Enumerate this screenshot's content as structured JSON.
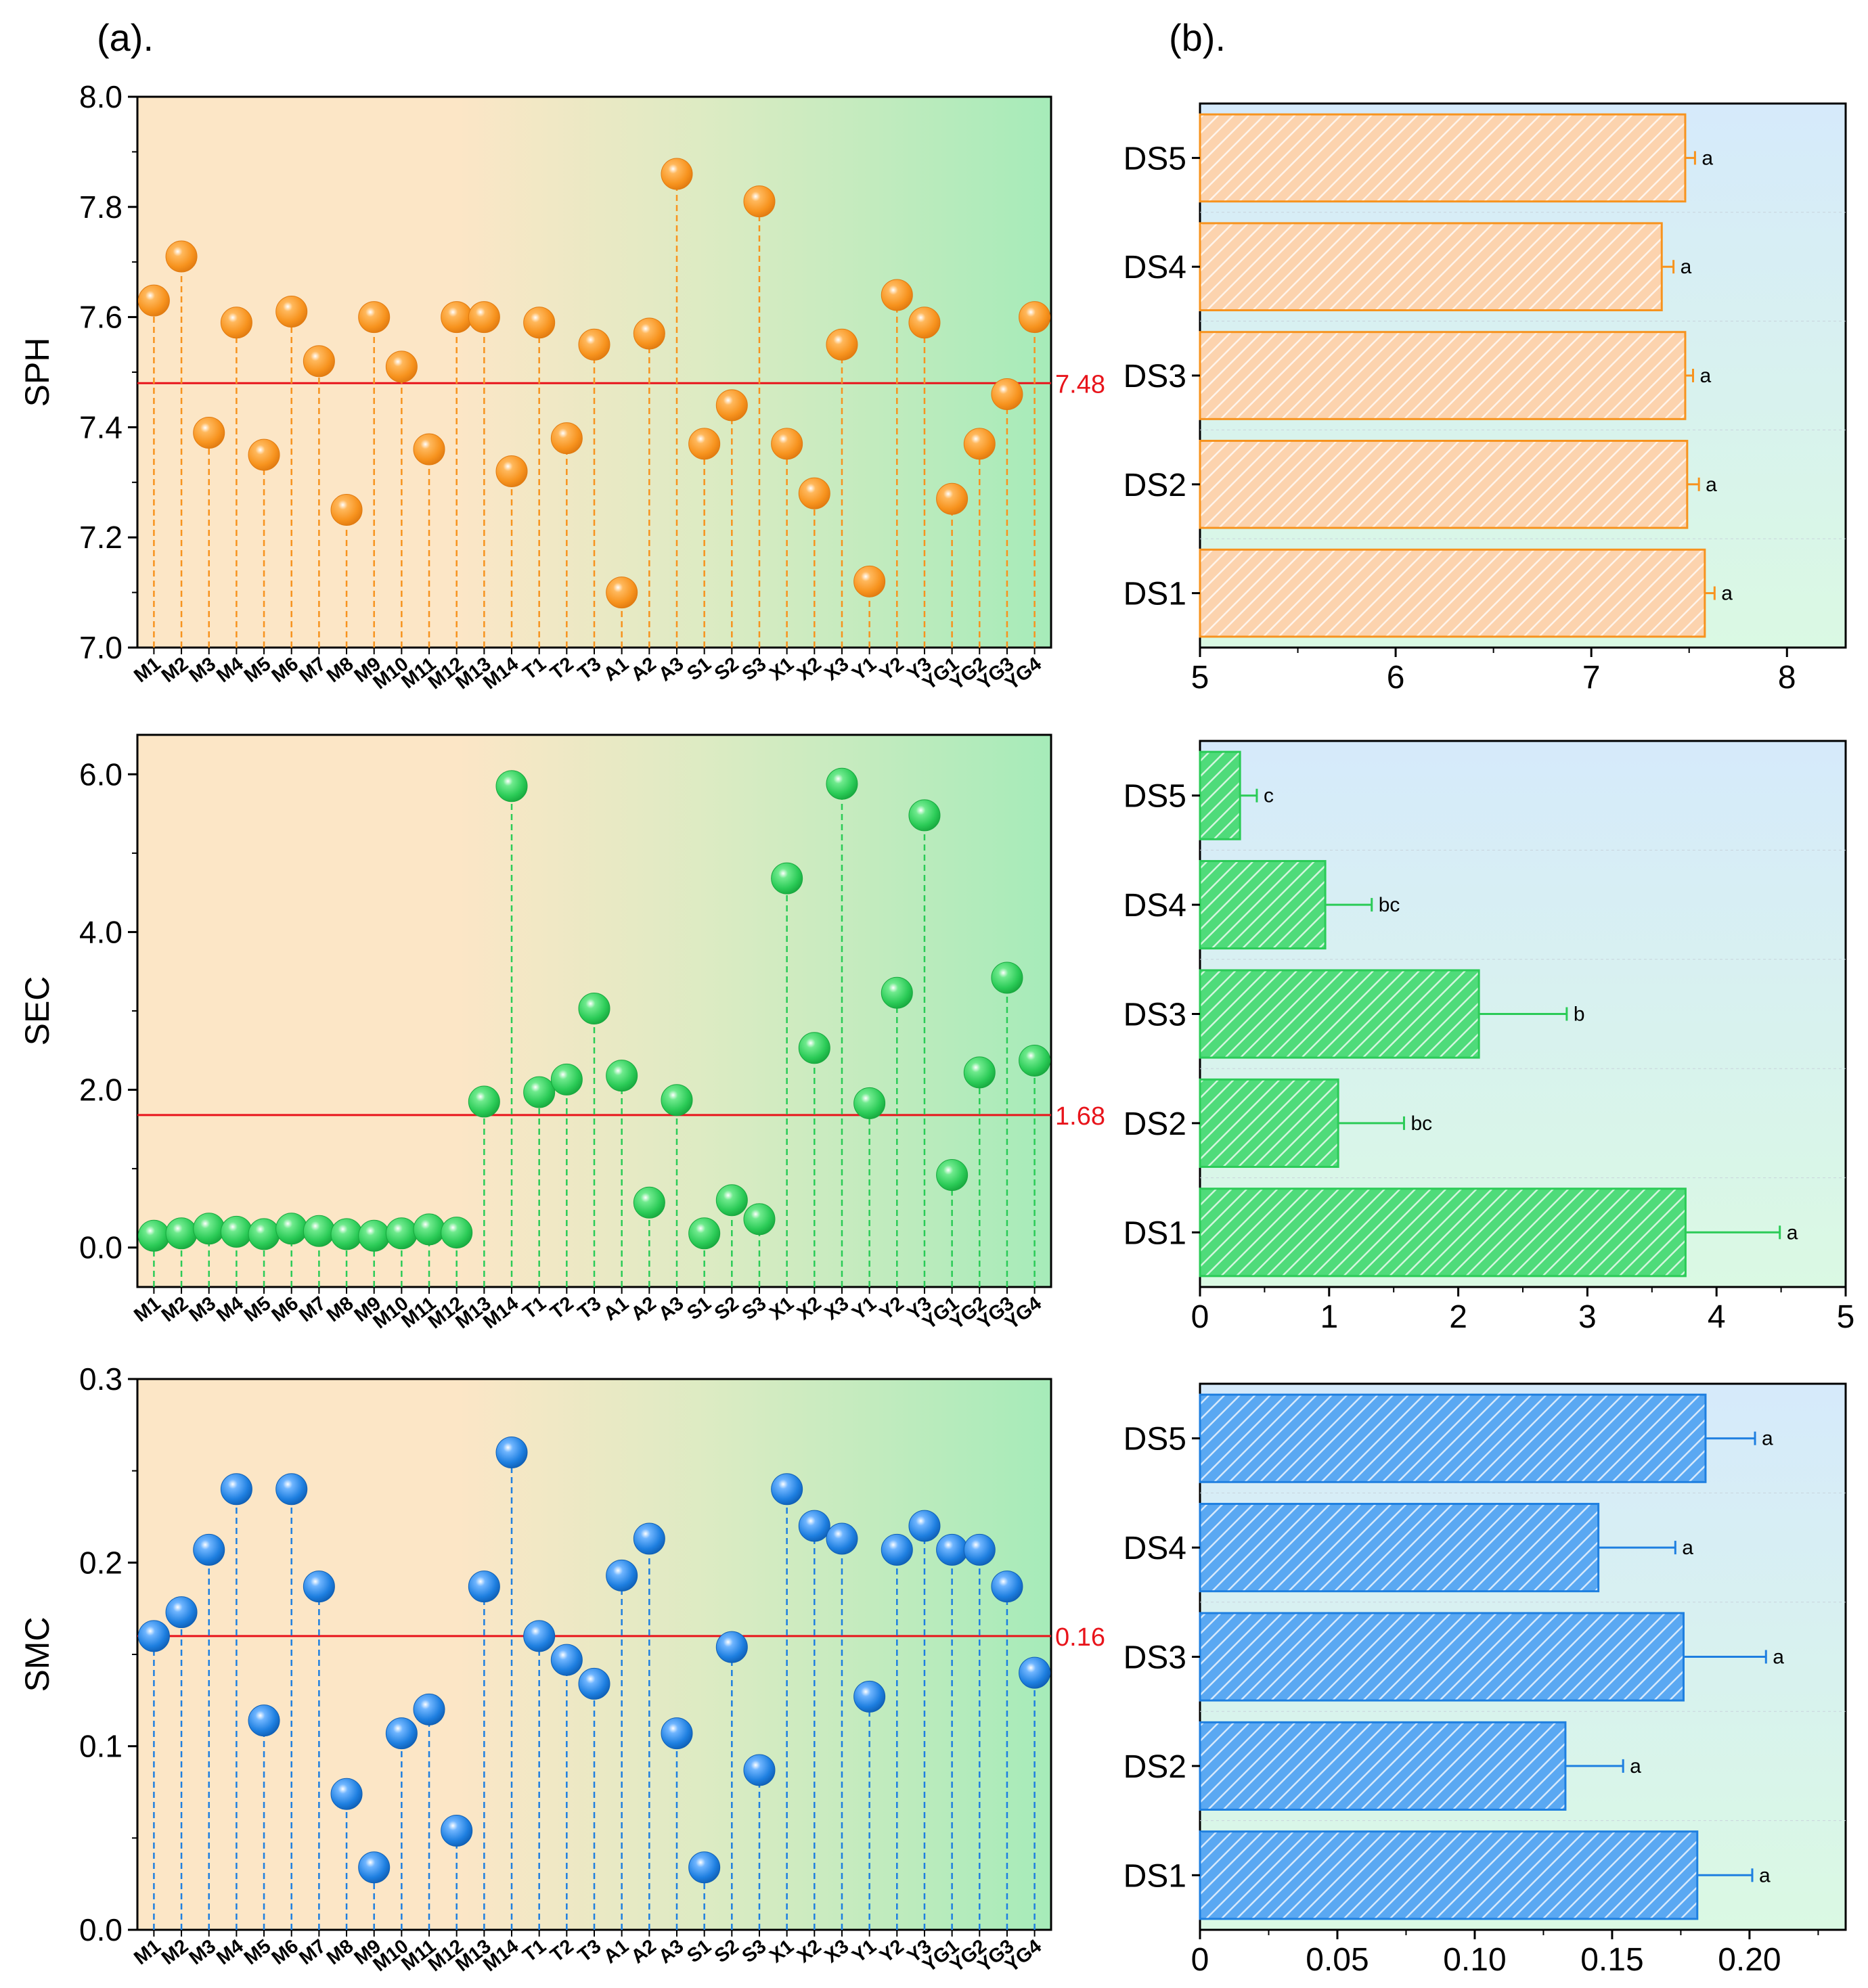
{
  "panel_labels": [
    "(a).",
    "(b)."
  ],
  "colors": {
    "orange": "#F7931E",
    "orange_dark": "#E07A10",
    "orange_light": "#FFB85C",
    "green": "#2BCB57",
    "green_dark": "#17A83E",
    "green_light": "#6FEA8D",
    "blue": "#1E7FE0",
    "blue_dark": "#0F5FB5",
    "blue_light": "#6FB5FF",
    "ref_line": "#E8141B",
    "bg_left": "#FCE6C6",
    "bg_mid": "#DDEBC3",
    "bg_right": "#A6EBB9",
    "bar_bg_top": "#D6EAFB",
    "bar_bg_bottom": "#DAF9E3"
  },
  "chart_data": [
    {
      "id": "a-sph",
      "type": "scatter",
      "style": "lollipop",
      "ylabel": "SPH",
      "ylim": [
        7.0,
        8.0
      ],
      "yticks": [
        "7.0",
        "7.2",
        "7.4",
        "7.6",
        "7.8",
        "8.0"
      ],
      "categories": [
        "M1",
        "M2",
        "M3",
        "M4",
        "M5",
        "M6",
        "M7",
        "M8",
        "M9",
        "M10",
        "M11",
        "M12",
        "M13",
        "M14",
        "T1",
        "T2",
        "T3",
        "A1",
        "A2",
        "A3",
        "S1",
        "S2",
        "S3",
        "X1",
        "X2",
        "X3",
        "Y1",
        "Y2",
        "Y3",
        "YG1",
        "YG2",
        "YG3",
        "YG4"
      ],
      "values": [
        7.63,
        7.71,
        7.39,
        7.59,
        7.35,
        7.61,
        7.52,
        7.25,
        7.6,
        7.51,
        7.36,
        7.6,
        7.6,
        7.32,
        7.59,
        7.38,
        7.55,
        7.1,
        7.57,
        7.86,
        7.37,
        7.44,
        7.81,
        7.37,
        7.28,
        7.55,
        7.12,
        7.64,
        7.59,
        7.27,
        7.37,
        7.46,
        7.6
      ],
      "reference": 7.48,
      "reference_label": "7.48"
    },
    {
      "id": "a-sec",
      "type": "scatter",
      "style": "lollipop",
      "ylabel": "SEC",
      "ylim": [
        -0.5,
        6.5
      ],
      "yticks": [
        "0.0",
        "2.0",
        "4.0",
        "6.0"
      ],
      "categories": [
        "M1",
        "M2",
        "M3",
        "M4",
        "M5",
        "M6",
        "M7",
        "M8",
        "M9",
        "M10",
        "M11",
        "M12",
        "M13",
        "M14",
        "T1",
        "T2",
        "T3",
        "A1",
        "A2",
        "A3",
        "S1",
        "S2",
        "S3",
        "X1",
        "X2",
        "X3",
        "Y1",
        "Y2",
        "Y3",
        "YG1",
        "YG2",
        "YG3",
        "YG4"
      ],
      "values": [
        0.15,
        0.18,
        0.24,
        0.2,
        0.17,
        0.24,
        0.21,
        0.17,
        0.15,
        0.18,
        0.23,
        0.19,
        1.85,
        5.85,
        1.97,
        2.13,
        3.03,
        2.18,
        0.57,
        1.87,
        0.18,
        0.6,
        0.36,
        4.68,
        2.53,
        5.88,
        1.83,
        3.23,
        5.48,
        0.92,
        2.22,
        3.42,
        2.37
      ],
      "reference": 1.68,
      "reference_label": "1.68"
    },
    {
      "id": "a-smc",
      "type": "scatter",
      "style": "lollipop",
      "ylabel": "SMC",
      "ylim": [
        0.0,
        0.3
      ],
      "yticks": [
        "0.0",
        "0.1",
        "0.2",
        "0.3"
      ],
      "categories": [
        "M1",
        "M2",
        "M3",
        "M4",
        "M5",
        "M6",
        "M7",
        "M8",
        "M9",
        "M10",
        "M11",
        "M12",
        "M13",
        "M14",
        "T1",
        "T2",
        "T3",
        "A1",
        "A2",
        "A3",
        "S1",
        "S2",
        "S3",
        "X1",
        "X2",
        "X3",
        "Y1",
        "Y2",
        "Y3",
        "YG1",
        "YG2",
        "YG3",
        "YG4"
      ],
      "values": [
        0.16,
        0.173,
        0.207,
        0.24,
        0.114,
        0.24,
        0.187,
        0.074,
        0.034,
        0.107,
        0.12,
        0.054,
        0.187,
        0.26,
        0.16,
        0.147,
        0.134,
        0.193,
        0.213,
        0.107,
        0.034,
        0.154,
        0.087,
        0.24,
        0.22,
        0.213,
        0.127,
        0.207,
        0.22,
        0.207,
        0.207,
        0.187,
        0.14
      ],
      "reference": 0.16,
      "reference_label": "0.16"
    },
    {
      "id": "b-sph",
      "type": "bar",
      "orientation": "horizontal",
      "categories": [
        "DS5",
        "DS4",
        "DS3",
        "DS2",
        "DS1"
      ],
      "values": [
        7.48,
        7.36,
        7.48,
        7.49,
        7.58
      ],
      "errors": [
        0.05,
        0.06,
        0.04,
        0.06,
        0.05
      ],
      "letters": [
        "a",
        "a",
        "a",
        "a",
        "a"
      ],
      "xlim": [
        5,
        8.3
      ],
      "xticks": [
        "5",
        "6",
        "7",
        "8"
      ]
    },
    {
      "id": "b-sec",
      "type": "bar",
      "orientation": "horizontal",
      "categories": [
        "DS5",
        "DS4",
        "DS3",
        "DS2",
        "DS1"
      ],
      "values": [
        0.31,
        0.97,
        2.16,
        1.07,
        3.76
      ],
      "errors": [
        0.13,
        0.36,
        0.68,
        0.51,
        0.73
      ],
      "letters": [
        "c",
        "bc",
        "b",
        "bc",
        "a"
      ],
      "xlim": [
        0,
        5
      ],
      "xticks": [
        "0",
        "1",
        "2",
        "3",
        "4",
        "5"
      ]
    },
    {
      "id": "b-smc",
      "type": "bar",
      "orientation": "horizontal",
      "categories": [
        "DS5",
        "DS4",
        "DS3",
        "DS2",
        "DS1"
      ],
      "values": [
        0.184,
        0.145,
        0.176,
        0.133,
        0.181
      ],
      "errors": [
        0.018,
        0.028,
        0.03,
        0.021,
        0.02
      ],
      "letters": [
        "a",
        "a",
        "a",
        "a",
        "a"
      ],
      "xlim": [
        0,
        0.235
      ],
      "xticks": [
        "0",
        "0.05",
        "0.10",
        "0.15",
        "0.20"
      ]
    }
  ]
}
